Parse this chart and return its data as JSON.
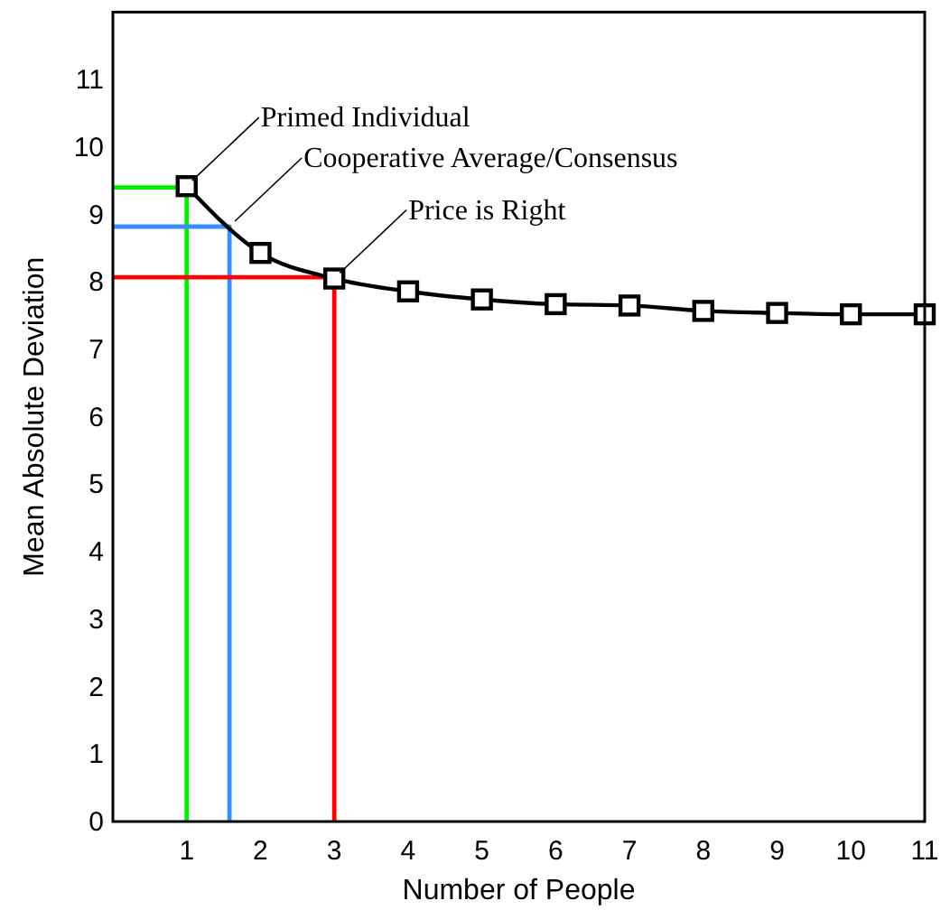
{
  "chart_data": {
    "type": "line",
    "xlabel": "Number of People",
    "ylabel": "Mean Absolute Deviation",
    "xlim": [
      0,
      11
    ],
    "ylim": [
      0,
      12
    ],
    "xticks": [
      1,
      2,
      3,
      4,
      5,
      6,
      7,
      8,
      9,
      10,
      11
    ],
    "yticks": [
      0,
      1,
      2,
      3,
      4,
      5,
      6,
      7,
      8,
      9,
      10,
      11
    ],
    "grid": false,
    "series": [
      {
        "color": "#00ee00",
        "marker": "none",
        "x": [
          0,
          1,
          1
        ],
        "values": [
          9.4,
          9.4,
          0
        ]
      },
      {
        "color": "#3a8ef6",
        "marker": "none",
        "x": [
          0,
          1.58,
          1.58
        ],
        "values": [
          8.82,
          8.82,
          0
        ]
      },
      {
        "color": "#ff0000",
        "marker": "none",
        "x": [
          0,
          3,
          3
        ],
        "values": [
          8.07,
          8.07,
          0
        ]
      },
      {
        "color": "#000000",
        "marker": "square",
        "x": [
          1,
          2,
          3,
          4,
          5,
          6,
          7,
          8,
          9,
          10,
          11
        ],
        "values": [
          9.42,
          8.43,
          8.05,
          7.86,
          7.74,
          7.67,
          7.65,
          7.57,
          7.54,
          7.52,
          7.52
        ]
      }
    ],
    "annotations": [
      {
        "text": "Primed Individual",
        "x": 1,
        "y": 9.42
      },
      {
        "text": "Cooperative Average/Consensus",
        "x": 1.58,
        "y": 8.82
      },
      {
        "text": "Price is Right",
        "x": 3,
        "y": 8.05
      }
    ]
  }
}
